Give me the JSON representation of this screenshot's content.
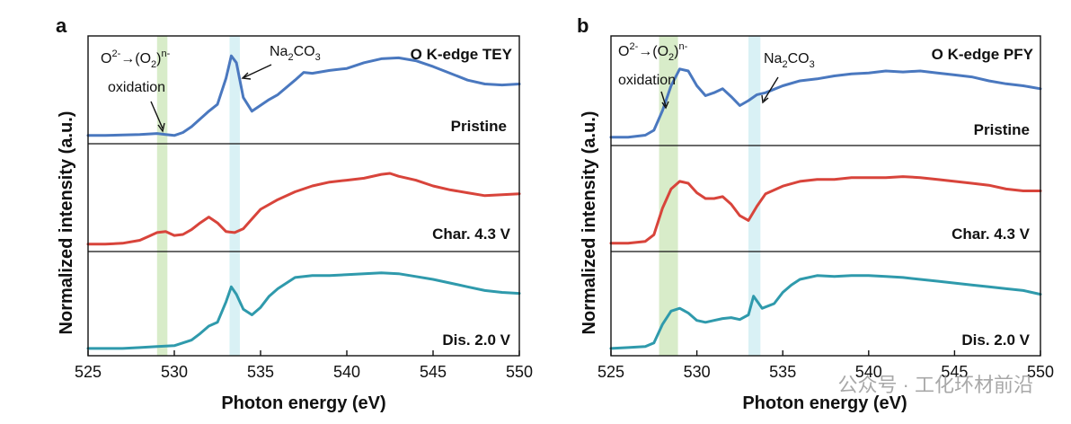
{
  "chart_data": [
    {
      "panel": "a",
      "type": "line",
      "title": "O K-edge TEY",
      "xlabel": "Photon energy (eV)",
      "ylabel": "Normalized intensity (a.u.)",
      "xlim": [
        525,
        550
      ],
      "xticks": [
        525,
        530,
        535,
        540,
        545,
        550
      ],
      "highlights": [
        {
          "from": 529.0,
          "to": 529.6,
          "color": "#d8ecc9"
        },
        {
          "from": 533.2,
          "to": 533.8,
          "color": "#d9f1f5"
        }
      ],
      "annotations": [
        {
          "text_base": "O",
          "sup1": "2-",
          "arrow": "→(O",
          "sub": "2",
          "close": ")",
          "sup2": "n-",
          "line2": "oxidation",
          "points_to": 529.3
        },
        {
          "text_base": "Na",
          "sub1": "2",
          "mid": "CO",
          "sub2": "3",
          "points_to": 533.5
        }
      ],
      "series": [
        {
          "name": "Pristine",
          "color": "#4a78bf",
          "x": [
            525,
            526,
            527,
            528,
            529,
            529.5,
            530,
            530.5,
            531,
            531.5,
            532,
            532.5,
            533,
            533.3,
            533.6,
            534,
            534.5,
            535,
            535.5,
            536,
            537,
            537.5,
            538,
            539,
            540,
            541,
            542,
            543,
            544,
            545,
            546,
            547,
            548,
            549,
            550
          ],
          "y": [
            0.03,
            0.03,
            0.035,
            0.04,
            0.05,
            0.04,
            0.03,
            0.06,
            0.12,
            0.2,
            0.28,
            0.35,
            0.62,
            0.85,
            0.78,
            0.42,
            0.28,
            0.34,
            0.4,
            0.45,
            0.6,
            0.68,
            0.67,
            0.7,
            0.72,
            0.78,
            0.82,
            0.83,
            0.8,
            0.74,
            0.67,
            0.6,
            0.56,
            0.55,
            0.56
          ]
        },
        {
          "name": "Char. 4.3 V",
          "color": "#d8443b",
          "x": [
            525,
            526,
            527,
            528,
            528.5,
            529,
            529.5,
            530,
            530.5,
            531,
            531.5,
            532,
            532.5,
            533,
            533.5,
            534,
            534.5,
            535,
            536,
            537,
            538,
            539,
            540,
            541,
            542,
            542.5,
            543,
            544,
            545,
            546,
            547,
            548,
            549,
            550
          ],
          "y": [
            0.02,
            0.02,
            0.03,
            0.06,
            0.1,
            0.14,
            0.15,
            0.11,
            0.12,
            0.17,
            0.24,
            0.3,
            0.24,
            0.15,
            0.14,
            0.18,
            0.28,
            0.38,
            0.48,
            0.56,
            0.62,
            0.66,
            0.68,
            0.7,
            0.74,
            0.75,
            0.72,
            0.68,
            0.62,
            0.58,
            0.55,
            0.52,
            0.53,
            0.54
          ]
        },
        {
          "name": "Dis. 2.0 V",
          "color": "#2f9aac",
          "x": [
            525,
            526,
            527,
            528,
            529,
            530,
            531,
            531.5,
            532,
            532.5,
            533,
            533.3,
            533.6,
            534,
            534.5,
            535,
            535.5,
            536,
            537,
            538,
            539,
            540,
            541,
            542,
            543,
            544,
            545,
            546,
            547,
            548,
            549,
            550
          ],
          "y": [
            0.02,
            0.02,
            0.02,
            0.03,
            0.04,
            0.05,
            0.11,
            0.18,
            0.26,
            0.3,
            0.52,
            0.68,
            0.6,
            0.44,
            0.38,
            0.46,
            0.58,
            0.66,
            0.78,
            0.8,
            0.8,
            0.81,
            0.82,
            0.83,
            0.82,
            0.79,
            0.76,
            0.72,
            0.68,
            0.64,
            0.62,
            0.61
          ]
        }
      ]
    },
    {
      "panel": "b",
      "type": "line",
      "title": "O K-edge PFY",
      "xlabel": "Photon energy (eV)",
      "ylabel": "Normalized intensity (a.u.)",
      "xlim": [
        525,
        550
      ],
      "xticks": [
        525,
        530,
        535,
        540,
        545,
        550
      ],
      "highlights": [
        {
          "from": 527.8,
          "to": 528.9,
          "color": "#d8ecc9"
        },
        {
          "from": 533.0,
          "to": 533.7,
          "color": "#d9f1f5"
        }
      ],
      "annotations": [
        {
          "text_base": "O",
          "sup1": "2-",
          "arrow": "→(O",
          "sub": "2",
          "close": ")",
          "sup2": "n-",
          "line2": "oxidation",
          "points_to": 528.3
        },
        {
          "text_base": "Na",
          "sub1": "2",
          "mid": "CO",
          "sub2": "3",
          "points_to": 533.4
        }
      ],
      "series": [
        {
          "name": "Pristine",
          "color": "#4a78bf",
          "x": [
            525,
            526,
            527,
            527.5,
            528,
            528.5,
            529,
            529.5,
            530,
            530.5,
            531,
            531.5,
            532,
            532.5,
            533,
            533.5,
            534,
            535,
            536,
            537,
            538,
            539,
            540,
            541,
            542,
            543,
            544,
            545,
            546,
            547,
            548,
            549,
            550
          ],
          "y": [
            0.03,
            0.03,
            0.05,
            0.1,
            0.3,
            0.55,
            0.72,
            0.7,
            0.55,
            0.45,
            0.48,
            0.52,
            0.44,
            0.35,
            0.4,
            0.46,
            0.48,
            0.55,
            0.6,
            0.62,
            0.65,
            0.67,
            0.68,
            0.7,
            0.69,
            0.7,
            0.68,
            0.66,
            0.64,
            0.6,
            0.57,
            0.55,
            0.52
          ]
        },
        {
          "name": "Char. 4.3 V",
          "color": "#d8443b",
          "x": [
            525,
            526,
            527,
            527.5,
            528,
            528.5,
            529,
            529.5,
            530,
            530.5,
            531,
            531.5,
            532,
            532.5,
            533,
            533.5,
            534,
            535,
            536,
            537,
            538,
            539,
            540,
            541,
            542,
            543,
            544,
            545,
            546,
            547,
            548,
            549,
            550
          ],
          "y": [
            0.03,
            0.03,
            0.05,
            0.12,
            0.4,
            0.6,
            0.68,
            0.66,
            0.56,
            0.5,
            0.5,
            0.52,
            0.44,
            0.32,
            0.27,
            0.42,
            0.55,
            0.63,
            0.68,
            0.7,
            0.7,
            0.72,
            0.72,
            0.72,
            0.73,
            0.72,
            0.7,
            0.68,
            0.66,
            0.64,
            0.6,
            0.58,
            0.58
          ]
        },
        {
          "name": "Dis. 2.0 V",
          "color": "#2f9aac",
          "x": [
            525,
            526,
            527,
            527.5,
            528,
            528.5,
            529,
            529.5,
            530,
            530.5,
            531,
            531.5,
            532,
            532.5,
            533,
            533.3,
            533.8,
            534.5,
            535,
            535.5,
            536,
            537,
            538,
            539,
            540,
            541,
            542,
            543,
            544,
            545,
            546,
            547,
            548,
            549,
            550
          ],
          "y": [
            0.02,
            0.03,
            0.04,
            0.08,
            0.28,
            0.42,
            0.45,
            0.4,
            0.32,
            0.3,
            0.32,
            0.34,
            0.35,
            0.33,
            0.38,
            0.58,
            0.45,
            0.5,
            0.62,
            0.7,
            0.76,
            0.8,
            0.79,
            0.8,
            0.8,
            0.79,
            0.78,
            0.76,
            0.74,
            0.72,
            0.7,
            0.68,
            0.66,
            0.64,
            0.6
          ]
        }
      ]
    }
  ],
  "watermark": "公众号 · 工化环材前沿"
}
